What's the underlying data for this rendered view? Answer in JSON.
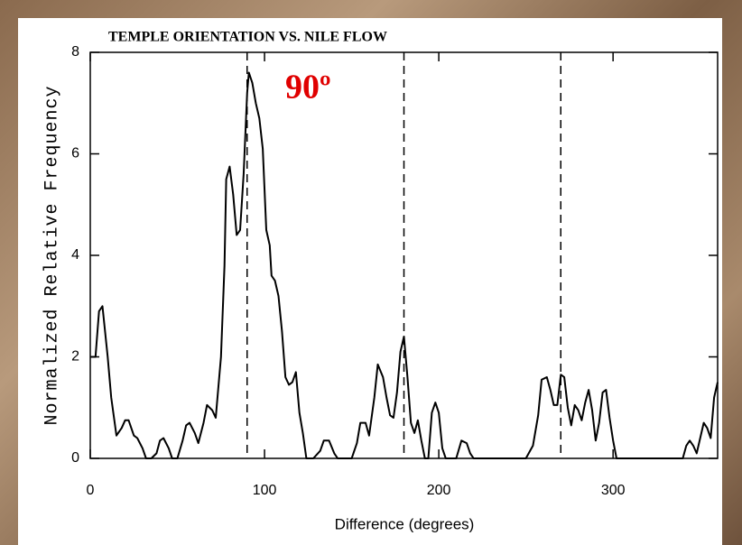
{
  "chart_data": {
    "type": "line",
    "title": "TEMPLE ORIENTATION VS. NILE FLOW",
    "xlabel": "Difference (degrees)",
    "ylabel": "Normalized Relative Frequency",
    "annotation": "90º",
    "annotation_color": "#e00000",
    "xlim": [
      0,
      360
    ],
    "xticks": [
      0,
      100,
      200,
      300
    ],
    "ylim": [
      0,
      8
    ],
    "yticks": [
      0,
      2,
      4,
      6,
      8
    ],
    "reference_lines": [
      90,
      180,
      270
    ],
    "series": [
      {
        "color": "#000000",
        "x": [
          0,
          3,
          5,
          7,
          10,
          12,
          15,
          18,
          20,
          22,
          25,
          27,
          30,
          32,
          35,
          38,
          40,
          42,
          45,
          47,
          50,
          53,
          55,
          57,
          60,
          62,
          65,
          67,
          70,
          72,
          75,
          77,
          78,
          80,
          82,
          84,
          86,
          88,
          90,
          91,
          93,
          95,
          97,
          99,
          101,
          103,
          104,
          106,
          108,
          110,
          112,
          114,
          116,
          118,
          120,
          122,
          124,
          128,
          132,
          134,
          137,
          140,
          142,
          150,
          153,
          155,
          158,
          160,
          163,
          165,
          168,
          170,
          172,
          174,
          176,
          178,
          180,
          182,
          184,
          186,
          188,
          190,
          192,
          194,
          196,
          198,
          200,
          202,
          204,
          210,
          213,
          216,
          218,
          220,
          250,
          254,
          257,
          259,
          262,
          264,
          266,
          268,
          270,
          272,
          274,
          276,
          278,
          280,
          282,
          284,
          286,
          288,
          290,
          292,
          294,
          296,
          298,
          300,
          302,
          340,
          342,
          344,
          346,
          348,
          350,
          352,
          354,
          356,
          358,
          360
        ],
        "values": [
          2.0,
          2.0,
          2.9,
          3.0,
          2.0,
          1.2,
          0.45,
          0.6,
          0.75,
          0.75,
          0.45,
          0.4,
          0.2,
          0,
          0,
          0.1,
          0.35,
          0.4,
          0.2,
          0,
          0,
          0.35,
          0.65,
          0.7,
          0.5,
          0.3,
          0.7,
          1.05,
          0.95,
          0.8,
          2.0,
          3.8,
          5.5,
          5.75,
          5.2,
          4.4,
          4.5,
          5.6,
          7.2,
          7.6,
          7.4,
          7.0,
          6.7,
          6.1,
          4.5,
          4.2,
          3.6,
          3.5,
          3.2,
          2.5,
          1.6,
          1.45,
          1.5,
          1.7,
          0.9,
          0.5,
          0,
          0,
          0.15,
          0.35,
          0.35,
          0.1,
          0,
          0,
          0.3,
          0.7,
          0.7,
          0.45,
          1.2,
          1.85,
          1.6,
          1.2,
          0.85,
          0.8,
          1.3,
          2.1,
          2.4,
          1.6,
          0.7,
          0.5,
          0.75,
          0.35,
          0,
          0,
          0.9,
          1.1,
          0.9,
          0.2,
          0,
          0,
          0.35,
          0.3,
          0.1,
          0,
          0,
          0.25,
          0.85,
          1.55,
          1.6,
          1.35,
          1.05,
          1.05,
          1.65,
          1.6,
          1.0,
          0.65,
          1.05,
          0.95,
          0.75,
          1.1,
          1.35,
          0.95,
          0.35,
          0.7,
          1.3,
          1.35,
          0.8,
          0.35,
          0,
          0,
          0.25,
          0.35,
          0.25,
          0.1,
          0.4,
          0.7,
          0.6,
          0.4,
          1.2,
          1.5
        ]
      }
    ]
  }
}
